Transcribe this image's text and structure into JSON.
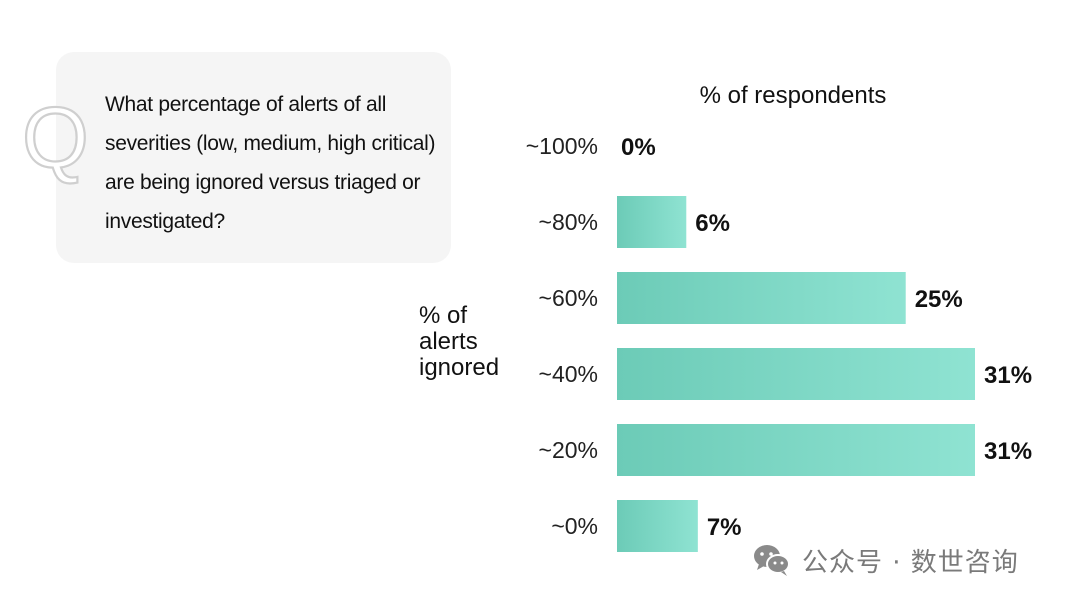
{
  "question": {
    "letter": "Q",
    "text": "What percentage of alerts of all severities (low, medium, high critical) are being ignored versus triaged or investigated?"
  },
  "chart_data": {
    "type": "bar",
    "orientation": "horizontal",
    "title": "% of respondents",
    "ylabel": "% of alerts ignored",
    "ylabel_lines": [
      "% of",
      "alerts",
      "ignored"
    ],
    "categories": [
      "~100%",
      "~80%",
      "~60%",
      "~40%",
      "~20%",
      "~0%"
    ],
    "values": [
      0,
      6,
      25,
      31,
      31,
      7
    ],
    "data_labels": [
      "0%",
      "6%",
      "25%",
      "31%",
      "31%",
      "7%"
    ],
    "xlim": [
      0,
      31
    ],
    "grid": false,
    "bar_color_start": "#6ccbb7",
    "bar_color_end": "#8fe3d2"
  },
  "watermark": {
    "text": "公众号 · 数世咨询",
    "icon": "wechat-icon"
  }
}
